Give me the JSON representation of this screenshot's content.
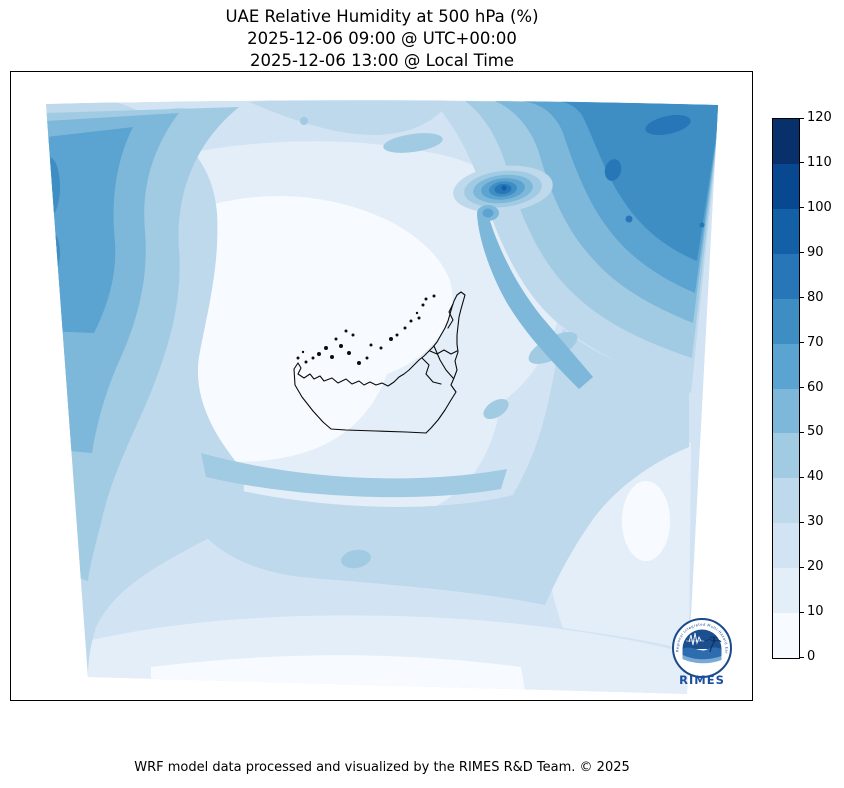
{
  "title": {
    "line1": "UAE Relative Humidity at 500 hPa (%)",
    "line2": "2025-12-06 09:00 @ UTC+00:00",
    "line3": "2025-12-06 13:00 @ Local Time"
  },
  "footer": {
    "caption": "WRF model data processed and visualized by the RIMES R&D Team. © 2025"
  },
  "logo": {
    "name": "RIMES",
    "ring_text": "Regional Integrated Multi-Hazard Early Warning System"
  },
  "colorbar": {
    "min": 0,
    "max": 120,
    "tick_values": [
      0,
      10,
      20,
      30,
      40,
      50,
      60,
      70,
      80,
      90,
      100,
      110,
      120
    ],
    "colors": [
      "#f7fbff",
      "#e4eef8",
      "#d2e3f3",
      "#bed8ec",
      "#a1cbe2",
      "#7db8da",
      "#5ba3d0",
      "#3e8ec4",
      "#2676b8",
      "#1360a7",
      "#084890",
      "#08306b"
    ]
  },
  "chart_data": {
    "type": "heatmap",
    "title": "UAE Relative Humidity at 500 hPa (%)",
    "variable": "Relative Humidity",
    "pressure_level_hPa": 500,
    "units": "%",
    "time_utc": "2025-12-06 09:00 @ UTC+00:00",
    "time_local": "2025-12-06 13:00 @ Local Time",
    "colormap": "Blues",
    "levels": [
      0,
      10,
      20,
      30,
      40,
      50,
      60,
      70,
      80,
      90,
      100,
      110,
      120
    ],
    "colorbar_range": [
      0,
      120
    ],
    "legend_position": "right",
    "map_overlay": "UAE coastline and emirate borders with offshore islands",
    "field_summary": [
      {
        "region": "northeast corner of domain",
        "rh_percent": "70-90"
      },
      {
        "region": "isolated maximum northeast of UAE coast",
        "rh_percent": "80-100"
      },
      {
        "region": "western edge of domain",
        "rh_percent": "40-80"
      },
      {
        "region": "central dry zone over and west of UAE",
        "rh_percent": "0-10"
      },
      {
        "region": "southern half of domain",
        "rh_percent": "10-40"
      },
      {
        "region": "southeast corner of domain",
        "rh_percent": "10-30"
      }
    ]
  }
}
